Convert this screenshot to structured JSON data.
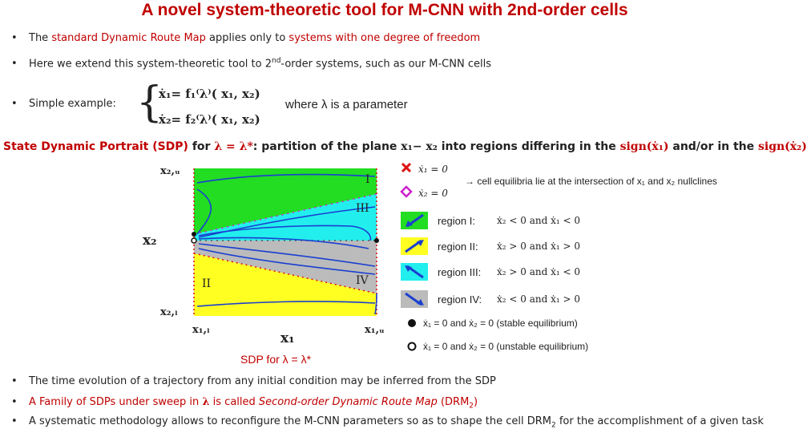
{
  "title": "A novel system-theoretic tool for M-CNN with 2nd-order cells",
  "bullets": {
    "b1": {
      "pre": "The ",
      "red1": "standard Dynamic Route Map",
      "mid": " applies only to ",
      "red2": "systems with one degree of freedom"
    },
    "b2": {
      "pre": "Here we extend this system-theoretic tool to 2",
      "sup": "nd",
      "post": "-order systems, such as our M-CNN cells"
    },
    "b3": {
      "text": "Simple example:"
    },
    "b4": {
      "text": "The time evolution of a trajectory from any initial condition may be inferred from the SDP"
    },
    "b5": {
      "pre": "A Family of SDPs under sweep in ",
      "lambda": "λ",
      "mid": " is called ",
      "italic": "Second-order Dynamic Route Map",
      "post": " (DRM",
      "sub": "2",
      "end": ")"
    },
    "b6": {
      "pre": "A systematic methodology allows to reconfigure the M-CNN parameters so as to shape the cell DRM",
      "sub": "2",
      "post": " for the accomplishment of a given task"
    }
  },
  "system": {
    "eq1": "ẋ₁= f₁⁽λ⁾( x₁, x₂)",
    "eq2": "ẋ₂= f₂⁽λ⁾( x₁, x₂)",
    "where": "where λ is a parameter"
  },
  "sdp_line": {
    "red": "State Dynamic Portrait (SDP)",
    "for": " for ",
    "lam": "λ = λ*",
    "mid": ": partition of the plane ",
    "plane": "x₁− x₂",
    "mid2": " into regions differing in the ",
    "sign1": "sign(ẋ₁)",
    "andor": " and/or in the ",
    "sign2": "sign(ẋ₂)"
  },
  "plot": {
    "ytop": "x₂,ᵤ",
    "ybot": "x₂,ₗ",
    "xleft": "x₁,ₗ",
    "xright": "x₁,ᵤ",
    "xlabel": "x₁",
    "ylabel": "x₂",
    "caption": "SDP for λ = λ*",
    "region_I": "I",
    "region_II": "II",
    "region_III": "III",
    "region_IV": "IV",
    "colors": {
      "green": "#22dd22",
      "cyan": "#22eeee",
      "gray": "#bbbbbb",
      "yellow": "#ffff22",
      "blue": "#1a3fd0",
      "red": "#dd1111",
      "magenta": "#cc22cc"
    }
  },
  "legend": {
    "null1": "ẋ₁ = 0",
    "null2": "ẋ₂ = 0",
    "equilib": "→ cell equilibria lie at the intersection of  x₁  and  x₂  nullclines",
    "r1": "region I:",
    "r1eq": "ẋ₂ < 0  and  ẋ₁ < 0",
    "r2": "region II:",
    "r2eq": "ẋ₂ > 0  and  ẋ₁ > 0",
    "r3": "region III:",
    "r3eq": "ẋ₂ > 0  and  ẋ₁ < 0",
    "r4": "region IV:",
    "r4eq": "ẋ₂ < 0  and  ẋ₁ > 0",
    "stable": "ẋ₁ = 0 and ẋ₂ = 0 (stable equilibrium)",
    "unstable": "ẋ₁ = 0 and ẋ₂ = 0 (unstable equilibrium)"
  }
}
